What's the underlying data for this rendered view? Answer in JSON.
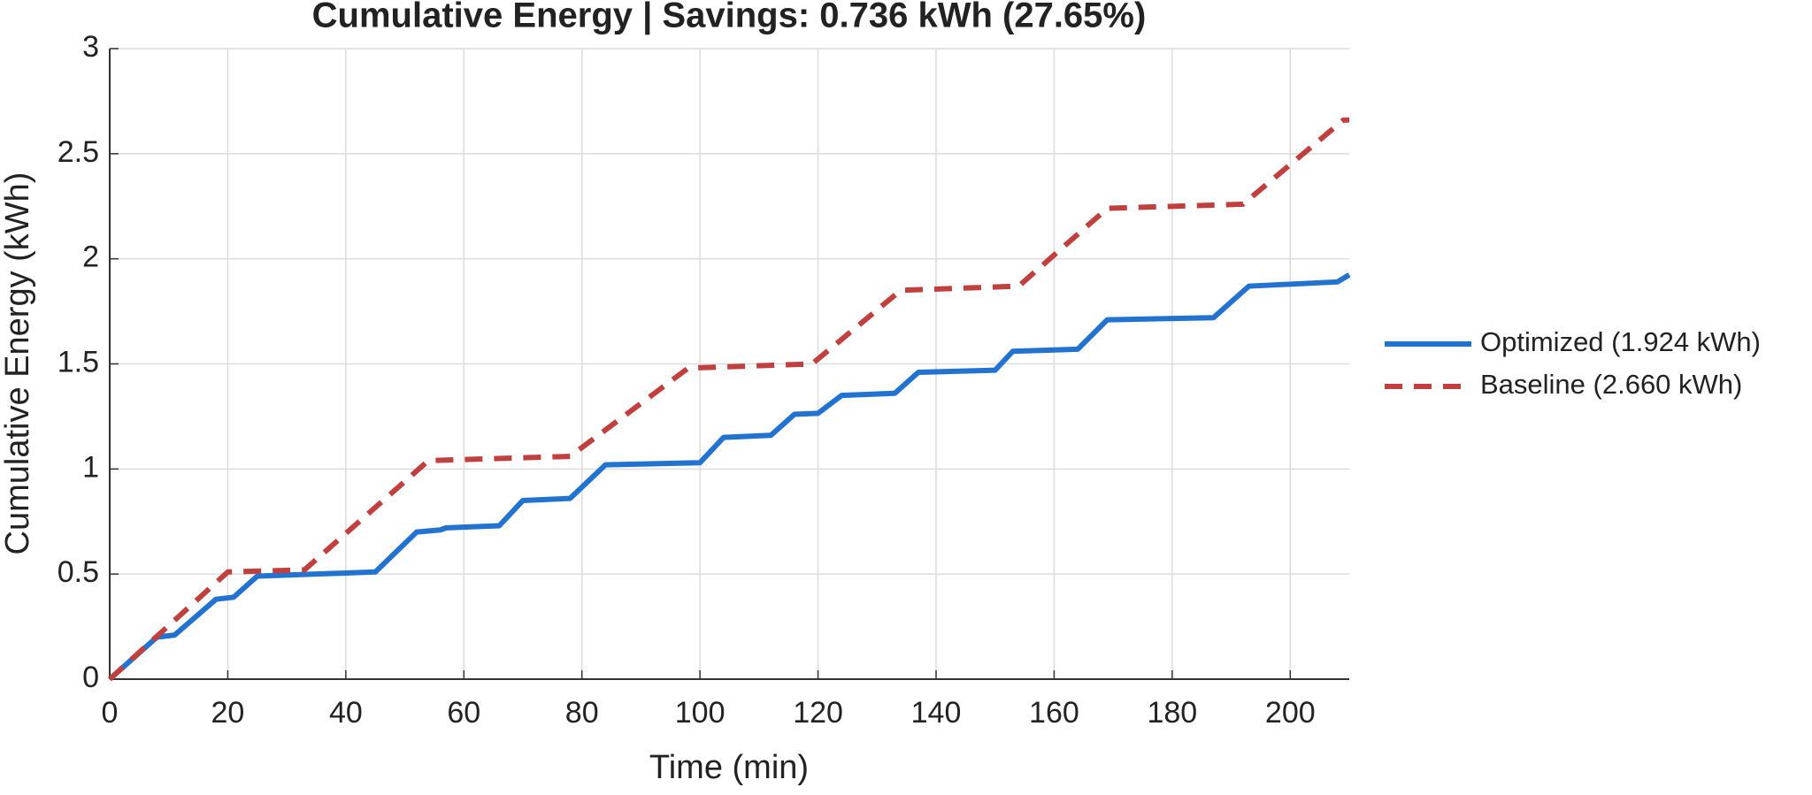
{
  "chart_data": {
    "type": "line",
    "title": "Cumulative Energy | Savings: 0.736 kWh (27.65%)",
    "x_label": "Time (min)",
    "y_label": "Cumulative Energy (kWh)",
    "xlim": [
      0,
      210
    ],
    "ylim": [
      0,
      3
    ],
    "xticks": [
      0,
      20,
      40,
      60,
      80,
      100,
      120,
      140,
      160,
      180,
      200
    ],
    "yticks": [
      0,
      0.5,
      1,
      1.5,
      2,
      2.5,
      3
    ],
    "grid": true,
    "legend": "outside-right",
    "series": [
      {
        "name": "Optimized (1.924 kWh)",
        "color": "#2272d0",
        "dash": "solid",
        "x": [
          0,
          8,
          11,
          18,
          21,
          25,
          45,
          52,
          56,
          57,
          66,
          70,
          78,
          84,
          100,
          104,
          112,
          116,
          120,
          124,
          133,
          137,
          150,
          153,
          164,
          169,
          187,
          193,
          208,
          210
        ],
        "values": [
          0,
          0.2,
          0.21,
          0.38,
          0.39,
          0.49,
          0.51,
          0.7,
          0.71,
          0.72,
          0.73,
          0.85,
          0.86,
          1.02,
          1.03,
          1.15,
          1.16,
          1.26,
          1.265,
          1.35,
          1.36,
          1.46,
          1.47,
          1.56,
          1.57,
          1.71,
          1.72,
          1.87,
          1.89,
          1.924
        ]
      },
      {
        "name": "Baseline (2.660 kWh)",
        "color": "#c0403f",
        "dash": "dashed",
        "x": [
          0,
          20,
          33,
          54,
          78,
          98,
          119,
          134,
          154,
          169,
          192,
          209,
          210
        ],
        "values": [
          0,
          0.51,
          0.52,
          1.04,
          1.06,
          1.48,
          1.5,
          1.85,
          1.87,
          2.24,
          2.26,
          2.66,
          2.66
        ]
      }
    ]
  }
}
